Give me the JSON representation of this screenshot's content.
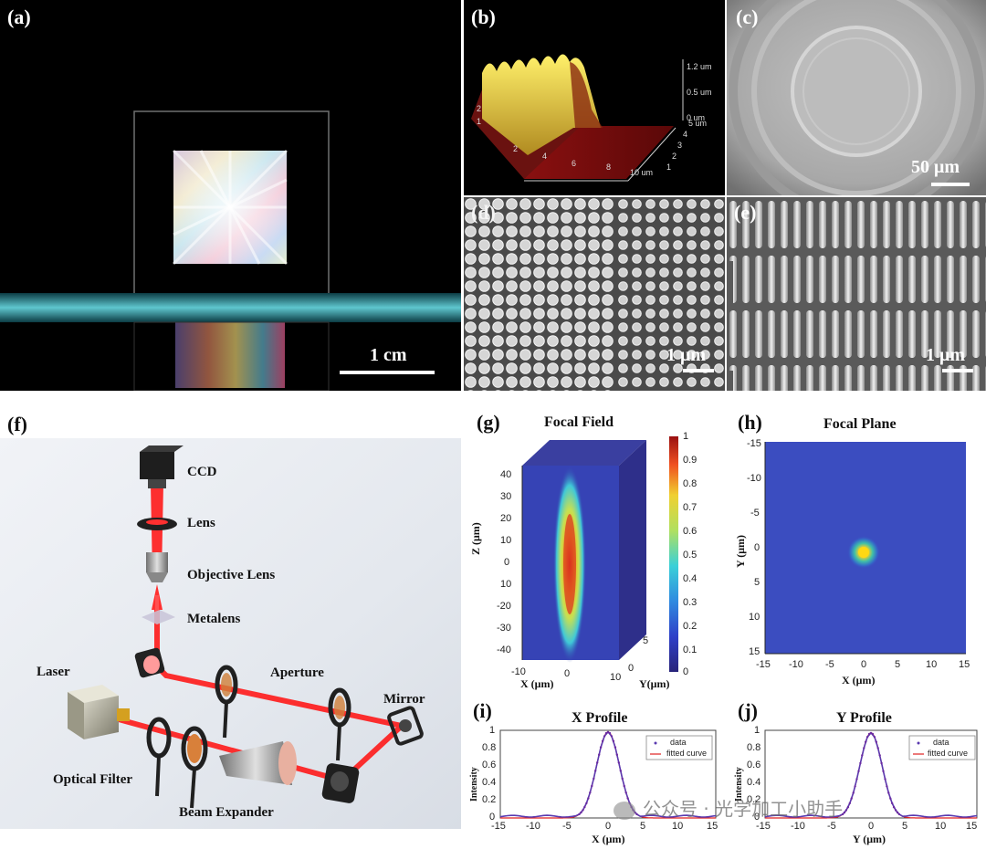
{
  "panels": {
    "a": {
      "label": "(a)",
      "scale": "1 cm"
    },
    "b": {
      "label": "(b)",
      "z_ticks": [
        "1.2 um",
        "0.5 um",
        "0 um"
      ],
      "x_ticks": [
        "2",
        "4",
        "6",
        "8",
        "10 um"
      ],
      "y_ticks": [
        "1",
        "2",
        "3",
        "4",
        "5 um"
      ],
      "left_ticks": [
        "2",
        "1"
      ]
    },
    "c": {
      "label": "(c)",
      "scale": "50 μm"
    },
    "d": {
      "label": "(d)",
      "scale": "1 μm"
    },
    "e": {
      "label": "(e)",
      "scale": "1 μm"
    },
    "f": {
      "label": "(f)",
      "components": {
        "ccd": "CCD",
        "lens": "Lens",
        "objective": "Objective Lens",
        "metalens": "Metalens",
        "aperture": "Aperture",
        "laser": "Laser",
        "mirror": "Mirror",
        "filter": "Optical Filter",
        "expander": "Beam Expander"
      }
    },
    "g": {
      "label": "(g)",
      "title": "Focal Field",
      "zlabel": "Z (μm)",
      "xlabel": "X (μm)",
      "ylabel": "Y(μm)",
      "z_ticks": [
        "40",
        "30",
        "20",
        "10",
        "0",
        "10",
        "-20",
        "-30",
        "-40"
      ],
      "x_ticks": [
        "-10",
        "0",
        "10"
      ],
      "y_ticks": [
        "5",
        "0"
      ],
      "colorbar": [
        "1",
        "0.9",
        "0.8",
        "0.7",
        "0.6",
        "0.5",
        "0.4",
        "0.3",
        "0.2",
        "0.1",
        "0"
      ]
    },
    "h": {
      "label": "(h)",
      "title": "Focal Plane",
      "xlabel": "X (μm)",
      "ylabel": "Y (μm)",
      "y_ticks": [
        "-15",
        "-10",
        "-5",
        "0",
        "5",
        "10",
        "15"
      ],
      "x_ticks": [
        "-15",
        "-10",
        "-5",
        "0",
        "5",
        "10",
        "15"
      ]
    },
    "i": {
      "label": "(i)",
      "title": "X Profile",
      "xlabel": "X (μm)",
      "ylabel": "Intensity",
      "legend_data": "data",
      "legend_fit": "fitted curve",
      "y_ticks": [
        "1",
        "0.8",
        "0.6",
        "0.4",
        "0.2",
        "0"
      ],
      "x_ticks": [
        "-15",
        "-10",
        "-5",
        "0",
        "5",
        "10",
        "15"
      ]
    },
    "j": {
      "label": "(j)",
      "title": "Y Profile",
      "xlabel": "Y (μm)",
      "ylabel": "Intensity",
      "legend_data": "data",
      "legend_fit": "fitted curve",
      "y_ticks": [
        "1",
        "0.8",
        "0.6",
        "0.4",
        "0.2",
        "0"
      ],
      "x_ticks": [
        "-15",
        "-10",
        "-5",
        "0",
        "5",
        "10",
        "15"
      ]
    }
  },
  "watermark": "公众号 · 光学加工小助手",
  "chart_data": [
    {
      "type": "line",
      "title": "X Profile",
      "xlabel": "X (μm)",
      "ylabel": "Intensity",
      "xlim": [
        -15,
        15
      ],
      "ylim": [
        0,
        1
      ],
      "series": [
        {
          "name": "data",
          "gaussian": {
            "center": 0,
            "sigma": 1.6,
            "amplitude": 0.98
          }
        },
        {
          "name": "fitted curve",
          "gaussian": {
            "center": 0,
            "sigma": 1.6,
            "amplitude": 0.98
          }
        }
      ]
    },
    {
      "type": "line",
      "title": "Y Profile",
      "xlabel": "Y (μm)",
      "ylabel": "Intensity",
      "xlim": [
        -15,
        15
      ],
      "ylim": [
        0,
        1
      ],
      "series": [
        {
          "name": "data",
          "gaussian": {
            "center": 0,
            "sigma": 1.6,
            "amplitude": 0.97
          }
        },
        {
          "name": "fitted curve",
          "gaussian": {
            "center": 0,
            "sigma": 1.6,
            "amplitude": 0.97
          }
        }
      ]
    },
    {
      "type": "heatmap",
      "title": "Focal Plane",
      "xlim": [
        -15,
        15
      ],
      "ylim": [
        -15,
        15
      ],
      "peak_at": [
        0,
        0
      ]
    },
    {
      "type": "heatmap",
      "title": "Focal Field",
      "zlim": [
        -40,
        40
      ],
      "xlim": [
        -10,
        10
      ],
      "colorbar_range": [
        0,
        1
      ]
    }
  ]
}
